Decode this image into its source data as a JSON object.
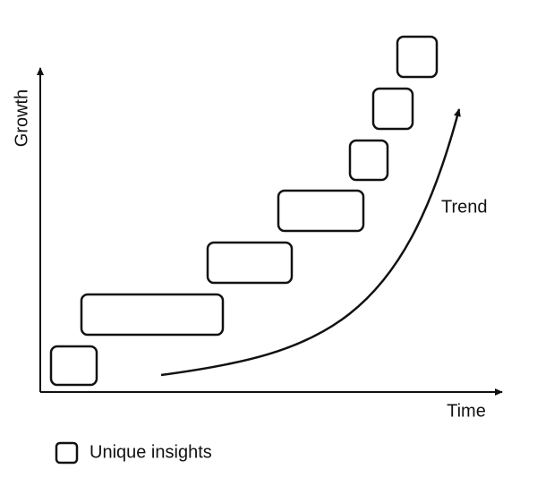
{
  "axes": {
    "y_label": "Growth",
    "x_label": "Time"
  },
  "curve": {
    "label": "Trend"
  },
  "legend": {
    "label": "Unique insights"
  }
}
